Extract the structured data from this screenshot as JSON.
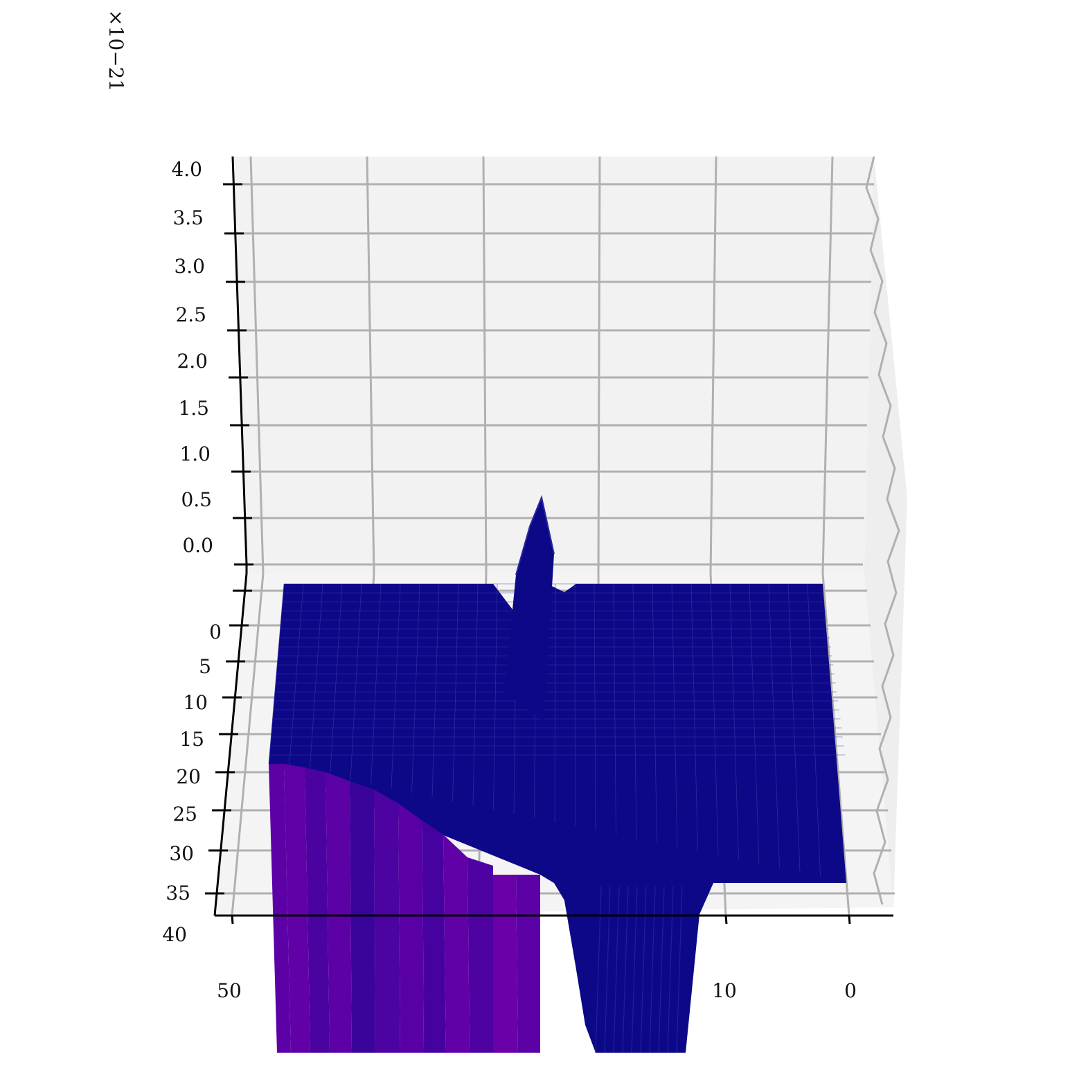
{
  "chart_data": {
    "type": "surface3d",
    "title": "",
    "xlabel": "",
    "ylabel": "",
    "zlabel": "",
    "z_scale_exponent_label": "×10−21",
    "z_ticks": [
      "4.0",
      "3.5",
      "3.0",
      "2.5",
      "2.0",
      "1.5",
      "1.0",
      "0.5",
      "0.0"
    ],
    "y_ticks": [
      "0",
      "5",
      "10",
      "15",
      "20",
      "25",
      "30",
      "35",
      "40"
    ],
    "x_ticks": [
      "50",
      "10",
      "0"
    ],
    "x_range": [
      0,
      50
    ],
    "y_range": [
      0,
      40
    ],
    "z_range": [
      0.0,
      4.0
    ],
    "grid": true,
    "colormap": "plasma",
    "colors": {
      "pane": "#f2f2f2",
      "gridline": "#b0b0b0",
      "axis": "#000000",
      "surface_base": "#0d0887",
      "surface_low": "#5c01a6",
      "surface_mid": "#6a00a8"
    },
    "surface_features": {
      "plateau_level": 0.0,
      "peak": {
        "x": 25,
        "z": 0.9
      },
      "description_values": {
        "peak_z": 0.9,
        "trough_z": -2.5
      }
    }
  }
}
